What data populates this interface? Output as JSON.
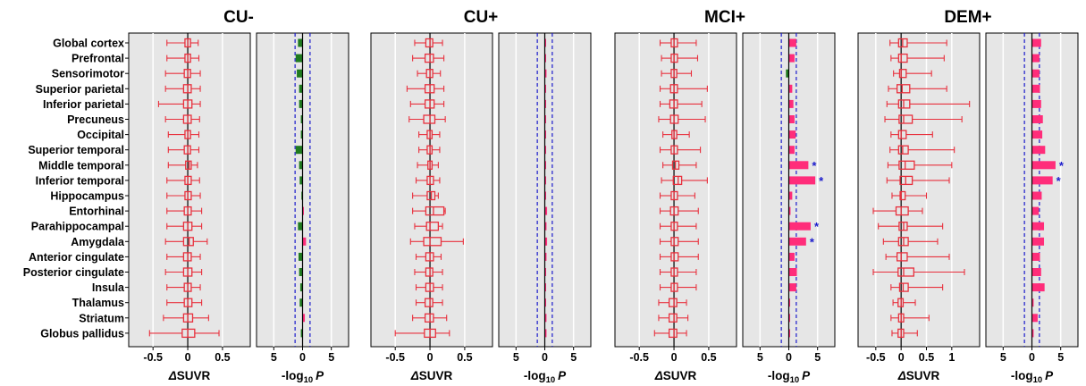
{
  "colors": {
    "panel_bg": "#e6e6e6",
    "grid": "#ffffff",
    "box": "#e8303d",
    "bar_pos": "#ff2d7a",
    "bar_neg": "#1f7a1f",
    "threshold": "#1a1acc",
    "star": "#1a1acc"
  },
  "chart_data": {
    "type": "boxplot+bar",
    "regions": [
      "Global cortex",
      "Prefrontal",
      "Sensorimotor",
      "Superior parietal",
      "Inferior parietal",
      "Precuneus",
      "Occipital",
      "Superior temporal",
      "Middle temporal",
      "Inferior temporal",
      "Hippocampus",
      "Entorhinal",
      "Parahippocampal",
      "Amygdala",
      "Anterior cingulate",
      "Posterior cingulate",
      "Insula",
      "Thalamus",
      "Striatum",
      "Globus pallidus"
    ],
    "box_xlabel": "ΔSUVR",
    "p_xlabel_prefix": "-log",
    "p_xlabel_sub": "10",
    "p_xlabel_suffix": "P",
    "p_axis": {
      "ticks": [
        5,
        0,
        5
      ],
      "tick_values": [
        -5,
        0,
        5
      ],
      "range": [
        -8,
        8
      ],
      "threshold": 1.3
    },
    "groups": [
      {
        "title": "CU-",
        "box_axis": {
          "range": [
            -0.85,
            0.9
          ],
          "ticks": [
            "-0.5",
            "0",
            "0.5"
          ],
          "tick_values": [
            -0.5,
            0,
            0.5
          ]
        },
        "boxes": [
          [
            -0.3,
            -0.04,
            0.0,
            0.04,
            0.15
          ],
          [
            -0.3,
            -0.04,
            0.0,
            0.04,
            0.16
          ],
          [
            -0.32,
            -0.05,
            0.0,
            0.04,
            0.18
          ],
          [
            -0.32,
            -0.06,
            0.0,
            0.05,
            0.18
          ],
          [
            -0.42,
            -0.06,
            0.0,
            0.06,
            0.18
          ],
          [
            -0.32,
            -0.06,
            0.0,
            0.05,
            0.17
          ],
          [
            -0.28,
            -0.04,
            0.0,
            0.04,
            0.16
          ],
          [
            -0.28,
            -0.05,
            0.0,
            0.04,
            0.16
          ],
          [
            -0.28,
            -0.03,
            0.02,
            0.05,
            0.14
          ],
          [
            -0.3,
            -0.04,
            0.0,
            0.05,
            0.17
          ],
          [
            -0.3,
            -0.04,
            0.0,
            0.05,
            0.18
          ],
          [
            -0.3,
            -0.05,
            0.0,
            0.05,
            0.2
          ],
          [
            -0.3,
            -0.06,
            0.0,
            0.06,
            0.2
          ],
          [
            -0.32,
            -0.06,
            0.02,
            0.08,
            0.28
          ],
          [
            -0.3,
            -0.06,
            0.0,
            0.05,
            0.18
          ],
          [
            -0.32,
            -0.06,
            0.0,
            0.06,
            0.2
          ],
          [
            -0.3,
            -0.05,
            0.0,
            0.05,
            0.18
          ],
          [
            -0.3,
            -0.05,
            0.0,
            0.06,
            0.2
          ],
          [
            -0.35,
            -0.06,
            0.0,
            0.07,
            0.3
          ],
          [
            -0.55,
            -0.08,
            0.0,
            0.1,
            0.45
          ]
        ],
        "bars": [
          -0.8,
          -1.2,
          -1.0,
          -0.6,
          -0.6,
          -0.3,
          -0.3,
          -1.2,
          -0.6,
          -0.5,
          -0.2,
          0.1,
          -0.8,
          0.6,
          -0.7,
          -0.6,
          -0.4,
          -0.5,
          0.4,
          -0.3
        ],
        "significant": []
      },
      {
        "title": "CU+",
        "box_axis": {
          "range": [
            -0.85,
            0.9
          ],
          "ticks": [
            "-0.5",
            "0",
            "0.5"
          ],
          "tick_values": [
            -0.5,
            0,
            0.5
          ]
        },
        "boxes": [
          [
            -0.22,
            -0.06,
            0.0,
            0.04,
            0.18
          ],
          [
            -0.25,
            -0.07,
            0.0,
            0.05,
            0.2
          ],
          [
            -0.18,
            -0.05,
            0.0,
            0.04,
            0.15
          ],
          [
            -0.33,
            -0.07,
            0.0,
            0.06,
            0.2
          ],
          [
            -0.28,
            -0.07,
            0.0,
            0.06,
            0.2
          ],
          [
            -0.3,
            -0.09,
            0.0,
            0.07,
            0.22
          ],
          [
            -0.16,
            -0.04,
            0.0,
            0.03,
            0.14
          ],
          [
            -0.16,
            -0.04,
            0.0,
            0.03,
            0.14
          ],
          [
            -0.18,
            -0.03,
            0.0,
            0.03,
            0.12
          ],
          [
            -0.2,
            -0.04,
            0.0,
            0.05,
            0.14
          ],
          [
            -0.25,
            -0.04,
            0.02,
            0.07,
            0.12
          ],
          [
            -0.25,
            -0.06,
            0.05,
            0.2,
            0.22
          ],
          [
            -0.22,
            -0.05,
            0.0,
            0.12,
            0.18
          ],
          [
            -0.28,
            -0.09,
            0.0,
            0.16,
            0.48
          ],
          [
            -0.2,
            -0.06,
            0.0,
            0.05,
            0.16
          ],
          [
            -0.22,
            -0.06,
            0.0,
            0.04,
            0.18
          ],
          [
            -0.2,
            -0.06,
            0.0,
            0.05,
            0.18
          ],
          [
            -0.2,
            -0.07,
            0.0,
            0.04,
            0.18
          ],
          [
            -0.25,
            -0.07,
            0.0,
            0.05,
            0.24
          ],
          [
            -0.5,
            -0.08,
            0.0,
            0.08,
            0.28
          ]
        ],
        "bars": [
          0.2,
          0.2,
          0.3,
          0.1,
          0.2,
          0.2,
          0.2,
          0.1,
          0.2,
          0.2,
          0.2,
          0.4,
          0.3,
          0.4,
          0.3,
          0.2,
          0.2,
          0.2,
          0.3,
          0.3
        ],
        "significant": []
      },
      {
        "title": "MCI+",
        "box_axis": {
          "range": [
            -0.85,
            0.9
          ],
          "ticks": [
            "-0.5",
            "0",
            "0.5"
          ],
          "tick_values": [
            -0.5,
            0,
            0.5
          ]
        },
        "boxes": [
          [
            -0.2,
            -0.04,
            0.0,
            0.05,
            0.32
          ],
          [
            -0.18,
            -0.04,
            0.0,
            0.05,
            0.34
          ],
          [
            -0.18,
            -0.04,
            0.0,
            0.04,
            0.25
          ],
          [
            -0.2,
            -0.05,
            0.0,
            0.05,
            0.48
          ],
          [
            -0.2,
            -0.06,
            0.0,
            0.05,
            0.4
          ],
          [
            -0.22,
            -0.05,
            0.0,
            0.06,
            0.45
          ],
          [
            -0.16,
            -0.03,
            0.0,
            0.04,
            0.22
          ],
          [
            -0.2,
            -0.04,
            0.0,
            0.05,
            0.38
          ],
          [
            -0.16,
            -0.02,
            0.02,
            0.07,
            0.32
          ],
          [
            -0.18,
            -0.01,
            0.06,
            0.11,
            0.48
          ],
          [
            -0.2,
            -0.04,
            0.0,
            0.05,
            0.3
          ],
          [
            -0.2,
            -0.05,
            0.0,
            0.06,
            0.35
          ],
          [
            -0.2,
            -0.04,
            0.0,
            0.05,
            0.32
          ],
          [
            -0.2,
            -0.04,
            0.0,
            0.06,
            0.35
          ],
          [
            -0.2,
            -0.04,
            0.0,
            0.06,
            0.35
          ],
          [
            -0.2,
            -0.04,
            0.0,
            0.05,
            0.32
          ],
          [
            -0.2,
            -0.04,
            0.0,
            0.05,
            0.32
          ],
          [
            -0.22,
            -0.07,
            0.0,
            0.04,
            0.18
          ],
          [
            -0.22,
            -0.07,
            0.0,
            0.04,
            0.2
          ],
          [
            -0.28,
            -0.07,
            0.0,
            0.04,
            0.18
          ]
        ],
        "bars": [
          1.3,
          1.0,
          -0.5,
          0.6,
          0.8,
          1.0,
          1.2,
          1.0,
          3.4,
          4.6,
          0.6,
          0.3,
          3.8,
          3.0,
          1.0,
          1.4,
          1.3,
          0.2,
          0.2,
          0.2
        ],
        "significant": [
          8,
          9,
          12,
          13
        ]
      },
      {
        "title": "DEM+",
        "box_axis": {
          "range": [
            -0.85,
            1.55
          ],
          "ticks": [
            "-0.5",
            "0",
            "0.5",
            "1"
          ],
          "tick_values": [
            -0.5,
            0,
            0.5,
            1
          ]
        },
        "boxes": [
          [
            -0.22,
            -0.05,
            0.03,
            0.12,
            0.9
          ],
          [
            -0.2,
            -0.05,
            0.0,
            0.12,
            0.85
          ],
          [
            -0.15,
            -0.03,
            0.0,
            0.1,
            0.6
          ],
          [
            -0.25,
            -0.08,
            0.02,
            0.17,
            0.9
          ],
          [
            -0.28,
            -0.05,
            0.05,
            0.17,
            1.35
          ],
          [
            -0.32,
            -0.04,
            0.05,
            0.22,
            1.2
          ],
          [
            -0.2,
            -0.05,
            0.0,
            0.1,
            0.62
          ],
          [
            -0.22,
            -0.05,
            0.03,
            0.14,
            1.05
          ],
          [
            -0.26,
            -0.04,
            0.08,
            0.26,
            1.0
          ],
          [
            -0.28,
            -0.02,
            0.09,
            0.22,
            0.95
          ],
          [
            -0.18,
            -0.02,
            0.0,
            0.08,
            0.5
          ],
          [
            -0.55,
            -0.1,
            0.0,
            0.14,
            0.42
          ],
          [
            -0.45,
            -0.04,
            0.05,
            0.12,
            0.82
          ],
          [
            -0.35,
            -0.05,
            0.05,
            0.14,
            0.72
          ],
          [
            -0.3,
            -0.08,
            0.0,
            0.12,
            0.95
          ],
          [
            -0.55,
            -0.06,
            0.05,
            0.25,
            1.25
          ],
          [
            -0.2,
            -0.03,
            0.04,
            0.14,
            0.82
          ],
          [
            -0.16,
            -0.06,
            0.0,
            0.04,
            0.28
          ],
          [
            -0.2,
            -0.05,
            0.0,
            0.05,
            0.55
          ],
          [
            -0.18,
            -0.06,
            0.0,
            0.05,
            0.32
          ]
        ],
        "bars": [
          1.6,
          1.3,
          1.3,
          1.4,
          1.6,
          1.9,
          1.8,
          2.3,
          4.1,
          3.6,
          1.7,
          1.2,
          2.1,
          2.1,
          1.4,
          1.6,
          2.2,
          0.3,
          1.0,
          0.3
        ],
        "significant": [
          8,
          9
        ]
      }
    ]
  }
}
